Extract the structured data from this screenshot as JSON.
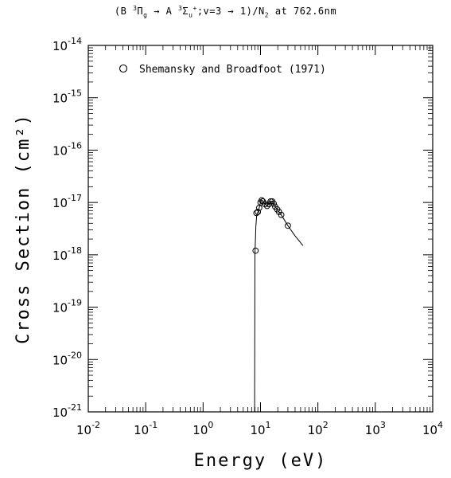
{
  "title": {
    "prefix": "(B ",
    "sup1": "3",
    "term1": "Π",
    "sub1": "g",
    "arrow": " → A ",
    "sup2": "3",
    "term2": "Σ",
    "sub2": "u",
    "sup3": "+",
    "rest": ";v=3 → 1)/N",
    "sub3": "2",
    "tail": " at 762.6nm"
  },
  "chart_data": {
    "type": "scatter",
    "xlabel": "Energy (eV)",
    "ylabel": "Cross Section (cm²)",
    "xscale": "log",
    "yscale": "log",
    "xlim": [
      0.01,
      10000
    ],
    "ylim": [
      1e-21,
      1e-14
    ],
    "x_ticks": [
      {
        "mant": "10",
        "exp": "-2"
      },
      {
        "mant": "10",
        "exp": "-1"
      },
      {
        "mant": "10",
        "exp": "0"
      },
      {
        "mant": "10",
        "exp": "1"
      },
      {
        "mant": "10",
        "exp": "2"
      },
      {
        "mant": "10",
        "exp": "3"
      },
      {
        "mant": "10",
        "exp": "4"
      }
    ],
    "y_ticks": [
      {
        "mant": "10",
        "exp": "-21"
      },
      {
        "mant": "10",
        "exp": "-20"
      },
      {
        "mant": "10",
        "exp": "-19"
      },
      {
        "mant": "10",
        "exp": "-18"
      },
      {
        "mant": "10",
        "exp": "-17"
      },
      {
        "mant": "10",
        "exp": "-16"
      },
      {
        "mant": "10",
        "exp": "-15"
      },
      {
        "mant": "10",
        "exp": "-14"
      }
    ],
    "legend": {
      "marker": "open-circle",
      "position": "top-left"
    },
    "series": [
      {
        "name": "Shemansky and Broadfoot (1971)",
        "kind": "points",
        "marker": "open-circle",
        "points": [
          [
            8.2,
            1.2e-18
          ],
          [
            8.5,
            6.3e-18
          ],
          [
            9.0,
            6.6e-18
          ],
          [
            9.5,
            7.9e-18
          ],
          [
            10.0,
            1e-17
          ],
          [
            10.5,
            1.1e-17
          ],
          [
            11.0,
            1.05e-17
          ],
          [
            12.0,
            9.3e-18
          ],
          [
            13.0,
            8.6e-18
          ],
          [
            14.0,
            9.3e-18
          ],
          [
            15.0,
            1.05e-17
          ],
          [
            16.0,
            1.05e-17
          ],
          [
            17.0,
            9.5e-18
          ],
          [
            18.0,
            8.3e-18
          ],
          [
            19.5,
            7.4e-18
          ],
          [
            21.0,
            6.6e-18
          ],
          [
            23.0,
            5.8e-18
          ],
          [
            30.0,
            3.6e-18
          ]
        ]
      },
      {
        "name": "",
        "kind": "line",
        "points": [
          [
            7.9,
            1e-21
          ],
          [
            8.0,
            1e-18
          ],
          [
            8.3,
            3.5e-18
          ],
          [
            8.6,
            5.8e-18
          ],
          [
            9.0,
            6.6e-18
          ],
          [
            9.5,
            7.9e-18
          ],
          [
            10.0,
            1e-17
          ],
          [
            10.5,
            1.1e-17
          ],
          [
            11.0,
            1.05e-17
          ],
          [
            12.0,
            9.3e-18
          ],
          [
            13.0,
            8.6e-18
          ],
          [
            14.0,
            9.3e-18
          ],
          [
            15.0,
            1.05e-17
          ],
          [
            16.0,
            1.05e-17
          ],
          [
            17.0,
            9.5e-18
          ],
          [
            18.0,
            8.3e-18
          ],
          [
            19.5,
            7.4e-18
          ],
          [
            21.0,
            6.6e-18
          ],
          [
            23.0,
            5.8e-18
          ],
          [
            30.0,
            3.6e-18
          ],
          [
            40.0,
            2.3e-18
          ],
          [
            55.0,
            1.5e-18
          ]
        ]
      }
    ]
  }
}
